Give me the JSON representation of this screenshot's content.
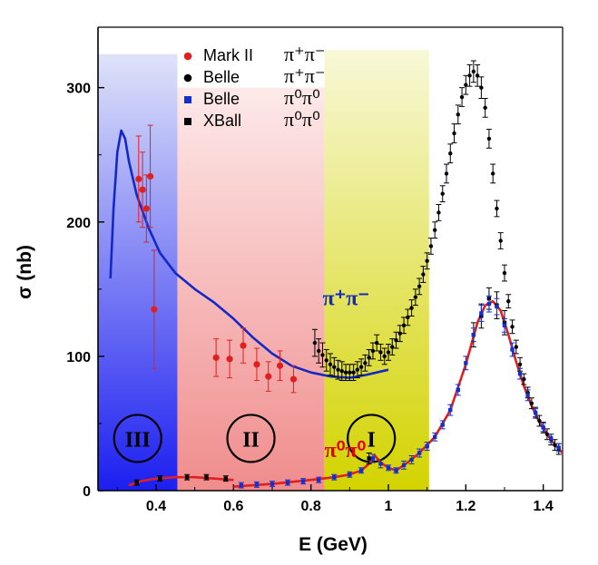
{
  "chart_data": {
    "type": "scatter",
    "xlabel": "E (GeV)",
    "ylabel": "σ (nb)",
    "xlim": [
      0.25,
      1.45
    ],
    "ylim": [
      0,
      345
    ],
    "x_ticks": [
      {
        "value": 0.4,
        "label": "0.4"
      },
      {
        "value": 0.6,
        "label": "0.6"
      },
      {
        "value": 0.8,
        "label": "0.8"
      },
      {
        "value": 1.0,
        "label": "1"
      },
      {
        "value": 1.2,
        "label": "1.2"
      },
      {
        "value": 1.4,
        "label": "1.4"
      }
    ],
    "y_ticks": [
      {
        "value": 0,
        "label": "0"
      },
      {
        "value": 100,
        "label": "100"
      },
      {
        "value": 200,
        "label": "200"
      },
      {
        "value": 300,
        "label": "300"
      }
    ],
    "legend": [
      {
        "experiment": "Mark II",
        "channel": "π⁺π⁻",
        "color": "#e02020",
        "marker": "circle"
      },
      {
        "experiment": "Belle",
        "channel": "π⁺π⁻",
        "color": "#000000",
        "marker": "circle"
      },
      {
        "experiment": "Belle",
        "channel": "π⁰π⁰",
        "color": "#1030d0",
        "marker": "square"
      },
      {
        "experiment": "XBall",
        "channel": "π⁰π⁰",
        "color": "#000000",
        "marker": "square"
      }
    ],
    "regions": [
      {
        "label": "III",
        "x_range": [
          0.25,
          0.455
        ],
        "y_top": 325,
        "color": "#1a1aee"
      },
      {
        "label": "II",
        "x_range": [
          0.455,
          0.835
        ],
        "y_top": 300,
        "color": "#f08a8a"
      },
      {
        "label": "I",
        "x_range": [
          0.835,
          1.105
        ],
        "y_top": 328,
        "color": "#d4d400"
      }
    ],
    "annotations": [
      {
        "text": "π⁺π⁻",
        "color": "#1428c8",
        "x": 0.83,
        "y": 138
      },
      {
        "text": "π⁰π⁰",
        "color": "#e00000",
        "x": 0.835,
        "y": 25
      }
    ],
    "series": [
      {
        "name": "Mark II",
        "channel": "π⁺π⁻",
        "color": "#e02020",
        "points": [
          {
            "x": 0.355,
            "y": 232,
            "err": 32
          },
          {
            "x": 0.365,
            "y": 224,
            "err": 28
          },
          {
            "x": 0.375,
            "y": 210,
            "err": 25
          },
          {
            "x": 0.385,
            "y": 234,
            "err": 38
          },
          {
            "x": 0.395,
            "y": 135,
            "err": 44
          },
          {
            "x": 0.555,
            "y": 99,
            "err": 14
          },
          {
            "x": 0.59,
            "y": 98,
            "err": 14
          },
          {
            "x": 0.625,
            "y": 108,
            "err": 13
          },
          {
            "x": 0.66,
            "y": 94,
            "err": 12
          },
          {
            "x": 0.69,
            "y": 85,
            "err": 11
          },
          {
            "x": 0.72,
            "y": 93,
            "err": 11
          },
          {
            "x": 0.755,
            "y": 83,
            "err": 10
          }
        ]
      },
      {
        "name": "Belle",
        "channel": "π⁺π⁻",
        "color": "#000000",
        "points": [
          {
            "x": 0.81,
            "y": 110,
            "err": 10
          },
          {
            "x": 0.82,
            "y": 104,
            "err": 9
          },
          {
            "x": 0.83,
            "y": 101,
            "err": 9
          },
          {
            "x": 0.84,
            "y": 97,
            "err": 8
          },
          {
            "x": 0.85,
            "y": 94,
            "err": 8
          },
          {
            "x": 0.86,
            "y": 92,
            "err": 7
          },
          {
            "x": 0.87,
            "y": 90,
            "err": 7
          },
          {
            "x": 0.88,
            "y": 89,
            "err": 7
          },
          {
            "x": 0.89,
            "y": 88,
            "err": 6
          },
          {
            "x": 0.9,
            "y": 88,
            "err": 6
          },
          {
            "x": 0.91,
            "y": 88,
            "err": 6
          },
          {
            "x": 0.92,
            "y": 90,
            "err": 6
          },
          {
            "x": 0.93,
            "y": 92,
            "err": 6
          },
          {
            "x": 0.94,
            "y": 95,
            "err": 6
          },
          {
            "x": 0.95,
            "y": 99,
            "err": 6
          },
          {
            "x": 0.96,
            "y": 104,
            "err": 6
          },
          {
            "x": 0.97,
            "y": 110,
            "err": 6
          },
          {
            "x": 0.98,
            "y": 103,
            "err": 6
          },
          {
            "x": 0.99,
            "y": 100,
            "err": 6
          },
          {
            "x": 1.0,
            "y": 103,
            "err": 6
          },
          {
            "x": 1.01,
            "y": 107,
            "err": 6
          },
          {
            "x": 1.02,
            "y": 112,
            "err": 6
          },
          {
            "x": 1.03,
            "y": 117,
            "err": 6
          },
          {
            "x": 1.04,
            "y": 123,
            "err": 6
          },
          {
            "x": 1.05,
            "y": 129,
            "err": 6
          },
          {
            "x": 1.06,
            "y": 136,
            "err": 6
          },
          {
            "x": 1.07,
            "y": 144,
            "err": 6
          },
          {
            "x": 1.08,
            "y": 152,
            "err": 6
          },
          {
            "x": 1.09,
            "y": 161,
            "err": 6
          },
          {
            "x": 1.1,
            "y": 171,
            "err": 6
          },
          {
            "x": 1.11,
            "y": 182,
            "err": 6
          },
          {
            "x": 1.12,
            "y": 194,
            "err": 6
          },
          {
            "x": 1.13,
            "y": 207,
            "err": 6
          },
          {
            "x": 1.14,
            "y": 221,
            "err": 6
          },
          {
            "x": 1.15,
            "y": 236,
            "err": 7
          },
          {
            "x": 1.16,
            "y": 251,
            "err": 7
          },
          {
            "x": 1.17,
            "y": 266,
            "err": 7
          },
          {
            "x": 1.18,
            "y": 280,
            "err": 7
          },
          {
            "x": 1.19,
            "y": 293,
            "err": 7
          },
          {
            "x": 1.2,
            "y": 302,
            "err": 7
          },
          {
            "x": 1.21,
            "y": 309,
            "err": 8
          },
          {
            "x": 1.22,
            "y": 312,
            "err": 8
          },
          {
            "x": 1.23,
            "y": 309,
            "err": 8
          },
          {
            "x": 1.24,
            "y": 300,
            "err": 8
          },
          {
            "x": 1.25,
            "y": 285,
            "err": 7
          },
          {
            "x": 1.26,
            "y": 262,
            "err": 7
          },
          {
            "x": 1.27,
            "y": 236,
            "err": 7
          },
          {
            "x": 1.28,
            "y": 210,
            "err": 6
          },
          {
            "x": 1.29,
            "y": 186,
            "err": 6
          },
          {
            "x": 1.3,
            "y": 162,
            "err": 6
          },
          {
            "x": 1.31,
            "y": 141,
            "err": 5
          },
          {
            "x": 1.32,
            "y": 122,
            "err": 5
          },
          {
            "x": 1.33,
            "y": 107,
            "err": 5
          },
          {
            "x": 1.34,
            "y": 94,
            "err": 5
          },
          {
            "x": 1.35,
            "y": 83,
            "err": 4
          },
          {
            "x": 1.36,
            "y": 73,
            "err": 4
          },
          {
            "x": 1.37,
            "y": 65,
            "err": 4
          },
          {
            "x": 1.38,
            "y": 58,
            "err": 4
          },
          {
            "x": 1.39,
            "y": 52,
            "err": 4
          },
          {
            "x": 1.4,
            "y": 47,
            "err": 4
          },
          {
            "x": 1.41,
            "y": 42,
            "err": 4
          },
          {
            "x": 1.42,
            "y": 38,
            "err": 4
          },
          {
            "x": 1.43,
            "y": 34,
            "err": 4
          },
          {
            "x": 1.44,
            "y": 31,
            "err": 4
          }
        ]
      },
      {
        "name": "Belle",
        "channel": "π⁰π⁰",
        "color": "#1030d0",
        "points": [
          {
            "x": 0.62,
            "y": 4,
            "err": 2
          },
          {
            "x": 0.66,
            "y": 4.5,
            "err": 2
          },
          {
            "x": 0.7,
            "y": 5,
            "err": 2
          },
          {
            "x": 0.74,
            "y": 6,
            "err": 2
          },
          {
            "x": 0.78,
            "y": 7,
            "err": 2
          },
          {
            "x": 0.82,
            "y": 8,
            "err": 2
          },
          {
            "x": 0.86,
            "y": 10,
            "err": 2
          },
          {
            "x": 0.9,
            "y": 12,
            "err": 2
          },
          {
            "x": 0.93,
            "y": 15,
            "err": 2
          },
          {
            "x": 0.96,
            "y": 24,
            "err": 3
          },
          {
            "x": 0.98,
            "y": 20,
            "err": 3
          },
          {
            "x": 1.0,
            "y": 17,
            "err": 2
          },
          {
            "x": 1.02,
            "y": 15,
            "err": 2
          },
          {
            "x": 1.04,
            "y": 19,
            "err": 3
          },
          {
            "x": 1.06,
            "y": 23,
            "err": 3
          },
          {
            "x": 1.08,
            "y": 28,
            "err": 3
          },
          {
            "x": 1.1,
            "y": 33,
            "err": 3
          },
          {
            "x": 1.12,
            "y": 40,
            "err": 3
          },
          {
            "x": 1.14,
            "y": 49,
            "err": 3
          },
          {
            "x": 1.16,
            "y": 60,
            "err": 4
          },
          {
            "x": 1.18,
            "y": 75,
            "err": 4
          },
          {
            "x": 1.2,
            "y": 95,
            "err": 5
          },
          {
            "x": 1.22,
            "y": 116,
            "err": 5
          },
          {
            "x": 1.24,
            "y": 132,
            "err": 6
          },
          {
            "x": 1.26,
            "y": 139,
            "err": 6
          },
          {
            "x": 1.28,
            "y": 137,
            "err": 6
          },
          {
            "x": 1.3,
            "y": 123,
            "err": 5
          },
          {
            "x": 1.32,
            "y": 105,
            "err": 5
          },
          {
            "x": 1.34,
            "y": 87,
            "err": 4
          },
          {
            "x": 1.36,
            "y": 71,
            "err": 4
          },
          {
            "x": 1.38,
            "y": 58,
            "err": 3
          },
          {
            "x": 1.4,
            "y": 47,
            "err": 3
          },
          {
            "x": 1.42,
            "y": 39,
            "err": 3
          },
          {
            "x": 1.44,
            "y": 32,
            "err": 3
          }
        ]
      },
      {
        "name": "XBall",
        "channel": "π⁰π⁰",
        "color": "#000000",
        "points": [
          {
            "x": 0.35,
            "y": 6,
            "err": 2
          },
          {
            "x": 0.41,
            "y": 9,
            "err": 2
          },
          {
            "x": 0.48,
            "y": 10,
            "err": 2
          },
          {
            "x": 0.53,
            "y": 10,
            "err": 2
          },
          {
            "x": 0.58,
            "y": 9,
            "err": 2
          },
          {
            "x": 0.95,
            "y": 24,
            "err": 4
          },
          {
            "x": 1.26,
            "y": 143,
            "err": 8
          },
          {
            "x": 1.28,
            "y": 138,
            "err": 10
          },
          {
            "x": 1.3,
            "y": 125,
            "err": 9
          },
          {
            "x": 1.24,
            "y": 130,
            "err": 9
          },
          {
            "x": 1.22,
            "y": 116,
            "err": 9
          }
        ]
      },
      {
        "name": "",
        "role": "curve",
        "channel": "π⁺π⁻",
        "color": "#1428c8",
        "points": [
          [
            0.282,
            158
          ],
          [
            0.29,
            210
          ],
          [
            0.3,
            252
          ],
          [
            0.31,
            268
          ],
          [
            0.32,
            262
          ],
          [
            0.33,
            245
          ],
          [
            0.35,
            220
          ],
          [
            0.38,
            196
          ],
          [
            0.41,
            177
          ],
          [
            0.45,
            162
          ],
          [
            0.5,
            150
          ],
          [
            0.55,
            140
          ],
          [
            0.6,
            128
          ],
          [
            0.65,
            114
          ],
          [
            0.7,
            102
          ],
          [
            0.75,
            93
          ],
          [
            0.8,
            88
          ],
          [
            0.85,
            85
          ],
          [
            0.9,
            84
          ],
          [
            0.94,
            86
          ],
          [
            0.97,
            88
          ],
          [
            1.0,
            90
          ]
        ]
      },
      {
        "name": "",
        "role": "curve",
        "channel": "π⁰π⁰",
        "color": "#e02020",
        "points": [
          [
            0.6,
            3
          ],
          [
            0.7,
            5
          ],
          [
            0.8,
            8
          ],
          [
            0.86,
            10
          ],
          [
            0.9,
            12
          ],
          [
            0.93,
            15
          ],
          [
            0.95,
            20
          ],
          [
            0.965,
            26
          ],
          [
            0.98,
            21
          ],
          [
            1.0,
            17
          ],
          [
            1.02,
            15
          ],
          [
            1.05,
            21
          ],
          [
            1.08,
            28
          ],
          [
            1.12,
            40
          ],
          [
            1.16,
            60
          ],
          [
            1.2,
            94
          ],
          [
            1.23,
            125
          ],
          [
            1.25,
            138
          ],
          [
            1.27,
            141
          ],
          [
            1.29,
            134
          ],
          [
            1.31,
            116
          ],
          [
            1.33,
            96
          ],
          [
            1.35,
            78
          ],
          [
            1.37,
            63
          ],
          [
            1.39,
            51
          ],
          [
            1.41,
            42
          ],
          [
            1.43,
            34
          ],
          [
            1.45,
            28
          ]
        ]
      },
      {
        "name": "",
        "role": "curve",
        "channel": "π⁰π⁰",
        "color": "#e02020",
        "points": [
          [
            0.33,
            4
          ],
          [
            0.36,
            7
          ],
          [
            0.4,
            9
          ],
          [
            0.45,
            10
          ],
          [
            0.5,
            10
          ],
          [
            0.55,
            9
          ],
          [
            0.6,
            8
          ]
        ]
      }
    ]
  }
}
